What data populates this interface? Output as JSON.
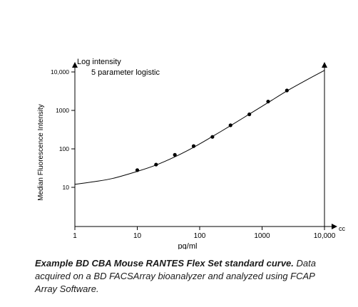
{
  "chart_data": {
    "type": "scatter",
    "x_scale": "log",
    "y_scale": "log",
    "xlabel": "pg/ml",
    "ylabel": "Median Fluorescence Intensity",
    "xlim": [
      1,
      10000
    ],
    "ylim": [
      5,
      10000
    ],
    "x_ticks": [
      1,
      10,
      100,
      1000,
      10000
    ],
    "x_tick_labels": [
      "1",
      "10",
      "100",
      "1000",
      "10,000"
    ],
    "y_ticks": [
      10,
      100,
      1000,
      10000
    ],
    "y_tick_labels": [
      "10",
      "100",
      "1000",
      "10,000"
    ],
    "x_end_label": "cc",
    "annotations": [
      "Log intensity",
      "5 parameter logistic"
    ],
    "grid": false,
    "points": [
      {
        "x": 10,
        "y": 28
      },
      {
        "x": 20,
        "y": 39
      },
      {
        "x": 40,
        "y": 70
      },
      {
        "x": 80,
        "y": 118
      },
      {
        "x": 160,
        "y": 205
      },
      {
        "x": 312,
        "y": 410
      },
      {
        "x": 625,
        "y": 790
      },
      {
        "x": 1250,
        "y": 1700
      },
      {
        "x": 2500,
        "y": 3300
      }
    ],
    "fit_curve": [
      {
        "x": 1,
        "y": 12
      },
      {
        "x": 2,
        "y": 14
      },
      {
        "x": 4,
        "y": 17
      },
      {
        "x": 10,
        "y": 26
      },
      {
        "x": 20,
        "y": 38
      },
      {
        "x": 40,
        "y": 62
      },
      {
        "x": 80,
        "y": 110
      },
      {
        "x": 160,
        "y": 210
      },
      {
        "x": 312,
        "y": 400
      },
      {
        "x": 625,
        "y": 800
      },
      {
        "x": 1250,
        "y": 1600
      },
      {
        "x": 2500,
        "y": 3200
      },
      {
        "x": 5000,
        "y": 6000
      },
      {
        "x": 10000,
        "y": 11000
      }
    ],
    "colors": {
      "axis": "#000000",
      "curve": "#000000",
      "points": "#000000"
    }
  },
  "caption": {
    "bold": "Example BD CBA Mouse RANTES Flex Set standard curve.",
    "text": " Data acquired on a BD FACSArray bioanalyzer and analyzed using FCAP Array Software."
  }
}
